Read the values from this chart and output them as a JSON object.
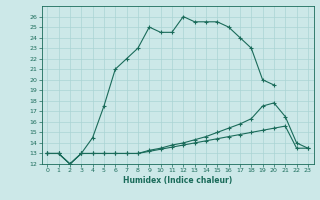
{
  "xlabel": "Humidex (Indice chaleur)",
  "bg_color": "#cce8e8",
  "grid_color": "#aad4d4",
  "line_color": "#1a6b5a",
  "xlim": [
    -0.5,
    23.5
  ],
  "ylim": [
    12,
    27
  ],
  "xticks": [
    0,
    1,
    2,
    3,
    4,
    5,
    6,
    7,
    8,
    9,
    10,
    11,
    12,
    13,
    14,
    15,
    16,
    17,
    18,
    19,
    20,
    21,
    22,
    23
  ],
  "yticks": [
    12,
    13,
    14,
    15,
    16,
    17,
    18,
    19,
    20,
    21,
    22,
    23,
    24,
    25,
    26
  ],
  "series1_x": [
    0,
    1,
    2,
    3,
    4,
    5,
    6,
    7,
    8,
    9,
    10,
    11,
    12,
    13,
    14,
    15,
    16,
    17,
    18,
    19,
    20
  ],
  "series1_y": [
    13,
    13,
    12,
    13,
    14.5,
    17.5,
    21,
    22,
    23,
    25,
    24.5,
    24.5,
    26,
    25.5,
    25.5,
    25.5,
    25,
    24,
    23,
    20,
    19.5
  ],
  "series2_x": [
    0,
    1,
    2,
    3,
    4,
    5,
    6,
    7,
    8,
    9,
    10,
    11,
    12,
    13,
    14,
    15,
    16,
    17,
    18,
    19,
    20,
    21,
    22,
    23
  ],
  "series2_y": [
    13,
    13,
    12,
    13,
    13,
    13,
    13,
    13,
    13,
    13.3,
    13.5,
    13.8,
    14,
    14.3,
    14.6,
    15.0,
    15.4,
    15.8,
    16.3,
    17.5,
    17.8,
    16.5,
    14.0,
    13.5
  ],
  "series3_x": [
    0,
    1,
    2,
    3,
    4,
    5,
    6,
    7,
    8,
    9,
    10,
    11,
    12,
    13,
    14,
    15,
    16,
    17,
    18,
    19,
    20,
    21,
    22,
    23
  ],
  "series3_y": [
    13,
    13,
    12,
    13,
    13,
    13,
    13,
    13,
    13,
    13.2,
    13.4,
    13.6,
    13.8,
    14.0,
    14.2,
    14.4,
    14.6,
    14.8,
    15.0,
    15.2,
    15.4,
    15.6,
    13.5,
    13.5
  ]
}
